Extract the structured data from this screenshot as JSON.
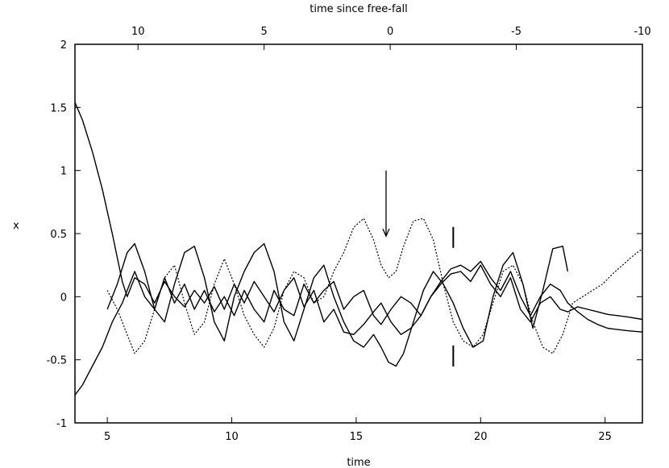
{
  "chart_data": {
    "type": "line",
    "title": "",
    "xlabel": "time",
    "ylabel": "x",
    "x2label": "time since free-fall",
    "xlim": [
      3.7,
      26.5
    ],
    "ylim": [
      -1,
      2
    ],
    "x2lim": [
      12.5,
      -10.0
    ],
    "xticks": [
      5,
      10,
      15,
      20,
      25
    ],
    "xtick_labels": [
      "5",
      "10",
      "15",
      "20",
      "25"
    ],
    "x2ticks": [
      10,
      5,
      0,
      -5,
      -10
    ],
    "x2tick_labels": [
      "10",
      "5",
      "0",
      "-5",
      "-10"
    ],
    "yticks": [
      -1,
      -0.5,
      0,
      0.5,
      1,
      1.5,
      2
    ],
    "ytick_labels": [
      "-1",
      "-0.5",
      "0",
      "0.5",
      "1",
      "1.5",
      "2"
    ],
    "grid": false,
    "legend": "none",
    "annotations": [
      {
        "type": "arrow",
        "x": 16.2,
        "y_from": 1.0,
        "y_to": 0.48
      },
      {
        "type": "marker",
        "x": 18.9,
        "y": 0.47
      },
      {
        "type": "marker",
        "x": 18.9,
        "y": -0.47
      }
    ],
    "series": [
      {
        "style": "solid",
        "x": [
          3.7,
          4.0,
          4.4,
          4.8,
          5.2,
          5.6,
          5.8,
          6.1,
          6.5,
          6.9,
          7.3,
          7.7,
          8.1,
          8.5,
          8.9,
          9.3,
          9.7,
          10.1,
          10.5,
          10.9,
          11.3,
          11.7,
          12.1,
          12.5,
          12.9,
          13.3,
          13.7,
          14.1,
          14.5,
          14.9,
          15.3,
          15.7,
          16.0,
          16.4,
          16.8,
          17.2,
          17.6,
          18.0,
          18.4,
          18.8,
          19.2,
          19.6,
          20.0,
          20.4,
          20.8,
          21.2,
          21.6,
          22.0,
          22.4,
          22.8,
          23.2,
          23.5,
          23.9,
          24.3,
          24.7,
          25.1,
          25.5,
          25.9,
          26.5
        ],
        "y": [
          1.54,
          1.4,
          1.15,
          0.85,
          0.5,
          0.12,
          0.0,
          0.15,
          0.1,
          -0.05,
          0.12,
          0.0,
          -0.08,
          0.05,
          -0.05,
          0.08,
          -0.1,
          0.1,
          -0.05,
          0.12,
          0.0,
          -0.12,
          0.05,
          0.15,
          -0.08,
          0.05,
          -0.2,
          -0.1,
          -0.28,
          -0.3,
          -0.22,
          -0.12,
          -0.05,
          -0.2,
          -0.3,
          -0.25,
          -0.15,
          0.0,
          0.12,
          0.22,
          0.25,
          0.2,
          0.28,
          0.15,
          0.05,
          0.2,
          0.0,
          -0.15,
          0.0,
          0.1,
          0.05,
          -0.05,
          -0.12,
          -0.18,
          -0.22,
          -0.25,
          -0.26,
          -0.27,
          -0.28
        ]
      },
      {
        "style": "solid",
        "x": [
          3.7,
          4.0,
          4.4,
          4.8,
          5.2,
          5.6,
          5.8,
          6.1,
          6.5,
          6.9,
          7.3,
          7.7,
          8.1,
          8.5,
          8.9,
          9.3,
          9.7,
          10.1,
          10.5,
          10.9,
          11.3,
          11.7,
          12.1,
          12.5,
          12.9,
          13.3,
          13.7,
          14.1,
          14.5,
          14.9,
          15.3,
          15.7,
          16.0,
          16.4,
          16.8,
          17.2,
          17.6,
          18.0,
          18.4,
          18.8,
          19.2,
          19.6,
          20.0,
          20.4,
          20.8,
          21.2,
          21.6,
          22.0,
          22.4,
          22.8,
          23.2,
          23.5,
          23.9,
          24.3,
          24.7,
          25.1,
          25.5,
          25.9,
          26.5
        ],
        "y": [
          -0.78,
          -0.7,
          -0.55,
          -0.4,
          -0.2,
          -0.05,
          0.05,
          0.2,
          0.0,
          -0.1,
          0.15,
          -0.05,
          0.1,
          -0.1,
          0.05,
          -0.12,
          0.0,
          -0.15,
          0.05,
          -0.1,
          -0.2,
          0.05,
          -0.1,
          -0.15,
          0.1,
          -0.05,
          0.05,
          0.12,
          -0.1,
          0.0,
          0.05,
          -0.15,
          -0.22,
          -0.1,
          0.0,
          -0.05,
          -0.15,
          0.0,
          0.1,
          0.18,
          0.2,
          0.12,
          0.25,
          0.1,
          0.0,
          0.15,
          -0.1,
          -0.2,
          -0.05,
          0.0,
          -0.1,
          -0.12,
          -0.08,
          -0.1,
          -0.12,
          -0.14,
          -0.15,
          -0.16,
          -0.18
        ]
      },
      {
        "style": "solid",
        "x": [
          5.0,
          5.4,
          5.8,
          6.1,
          6.5,
          6.9,
          7.3,
          7.7,
          8.1,
          8.5,
          8.9,
          9.3,
          9.7,
          10.1,
          10.5,
          10.9,
          11.3,
          11.7,
          12.1,
          12.5,
          12.9,
          13.3,
          13.7,
          14.1,
          14.5,
          14.9,
          15.3,
          15.7,
          16.0,
          16.3,
          16.6,
          16.9,
          17.3,
          17.7,
          18.1,
          18.5,
          18.9,
          19.3,
          19.7,
          20.1,
          20.5,
          20.9,
          21.3,
          21.7,
          22.1,
          22.5,
          22.9,
          23.3,
          23.5
        ],
        "y": [
          -0.1,
          0.1,
          0.35,
          0.42,
          0.2,
          -0.1,
          -0.2,
          0.1,
          0.35,
          0.4,
          0.15,
          -0.2,
          -0.35,
          0.0,
          0.2,
          0.35,
          0.42,
          0.2,
          -0.2,
          -0.35,
          -0.1,
          0.15,
          0.25,
          0.0,
          -0.2,
          -0.35,
          -0.4,
          -0.3,
          -0.4,
          -0.52,
          -0.55,
          -0.45,
          -0.2,
          0.05,
          0.2,
          0.1,
          -0.05,
          -0.25,
          -0.4,
          -0.35,
          0.0,
          0.25,
          0.35,
          0.1,
          -0.25,
          0.05,
          0.38,
          0.4,
          0.2
        ]
      },
      {
        "style": "dotted",
        "x": [
          5.0,
          5.4,
          5.8,
          6.1,
          6.5,
          6.9,
          7.3,
          7.7,
          8.1,
          8.5,
          8.9,
          9.3,
          9.7,
          10.1,
          10.5,
          10.9,
          11.3,
          11.7,
          12.1,
          12.5,
          12.9,
          13.3,
          13.7,
          14.1,
          14.5,
          14.9,
          15.3,
          15.7,
          16.0,
          16.3,
          16.6,
          16.9,
          17.3,
          17.7,
          18.1,
          18.5,
          18.9,
          19.3,
          19.7,
          20.1,
          20.5,
          20.9,
          21.3,
          21.7,
          22.1,
          22.5,
          22.9,
          23.3,
          23.7,
          24.1,
          24.5,
          24.9,
          25.3,
          25.7,
          26.1,
          26.5
        ],
        "y": [
          0.05,
          -0.1,
          -0.3,
          -0.45,
          -0.35,
          -0.1,
          0.15,
          0.25,
          -0.05,
          -0.3,
          -0.2,
          0.1,
          0.3,
          0.1,
          -0.15,
          -0.3,
          -0.4,
          -0.25,
          0.05,
          0.2,
          0.15,
          -0.05,
          0.0,
          0.2,
          0.35,
          0.55,
          0.62,
          0.45,
          0.25,
          0.15,
          0.2,
          0.4,
          0.6,
          0.62,
          0.45,
          0.1,
          -0.2,
          -0.35,
          -0.4,
          -0.3,
          -0.05,
          0.2,
          0.25,
          0.1,
          -0.2,
          -0.4,
          -0.45,
          -0.3,
          -0.05,
          0.0,
          0.05,
          0.1,
          0.18,
          0.25,
          0.32,
          0.38
        ]
      }
    ]
  }
}
